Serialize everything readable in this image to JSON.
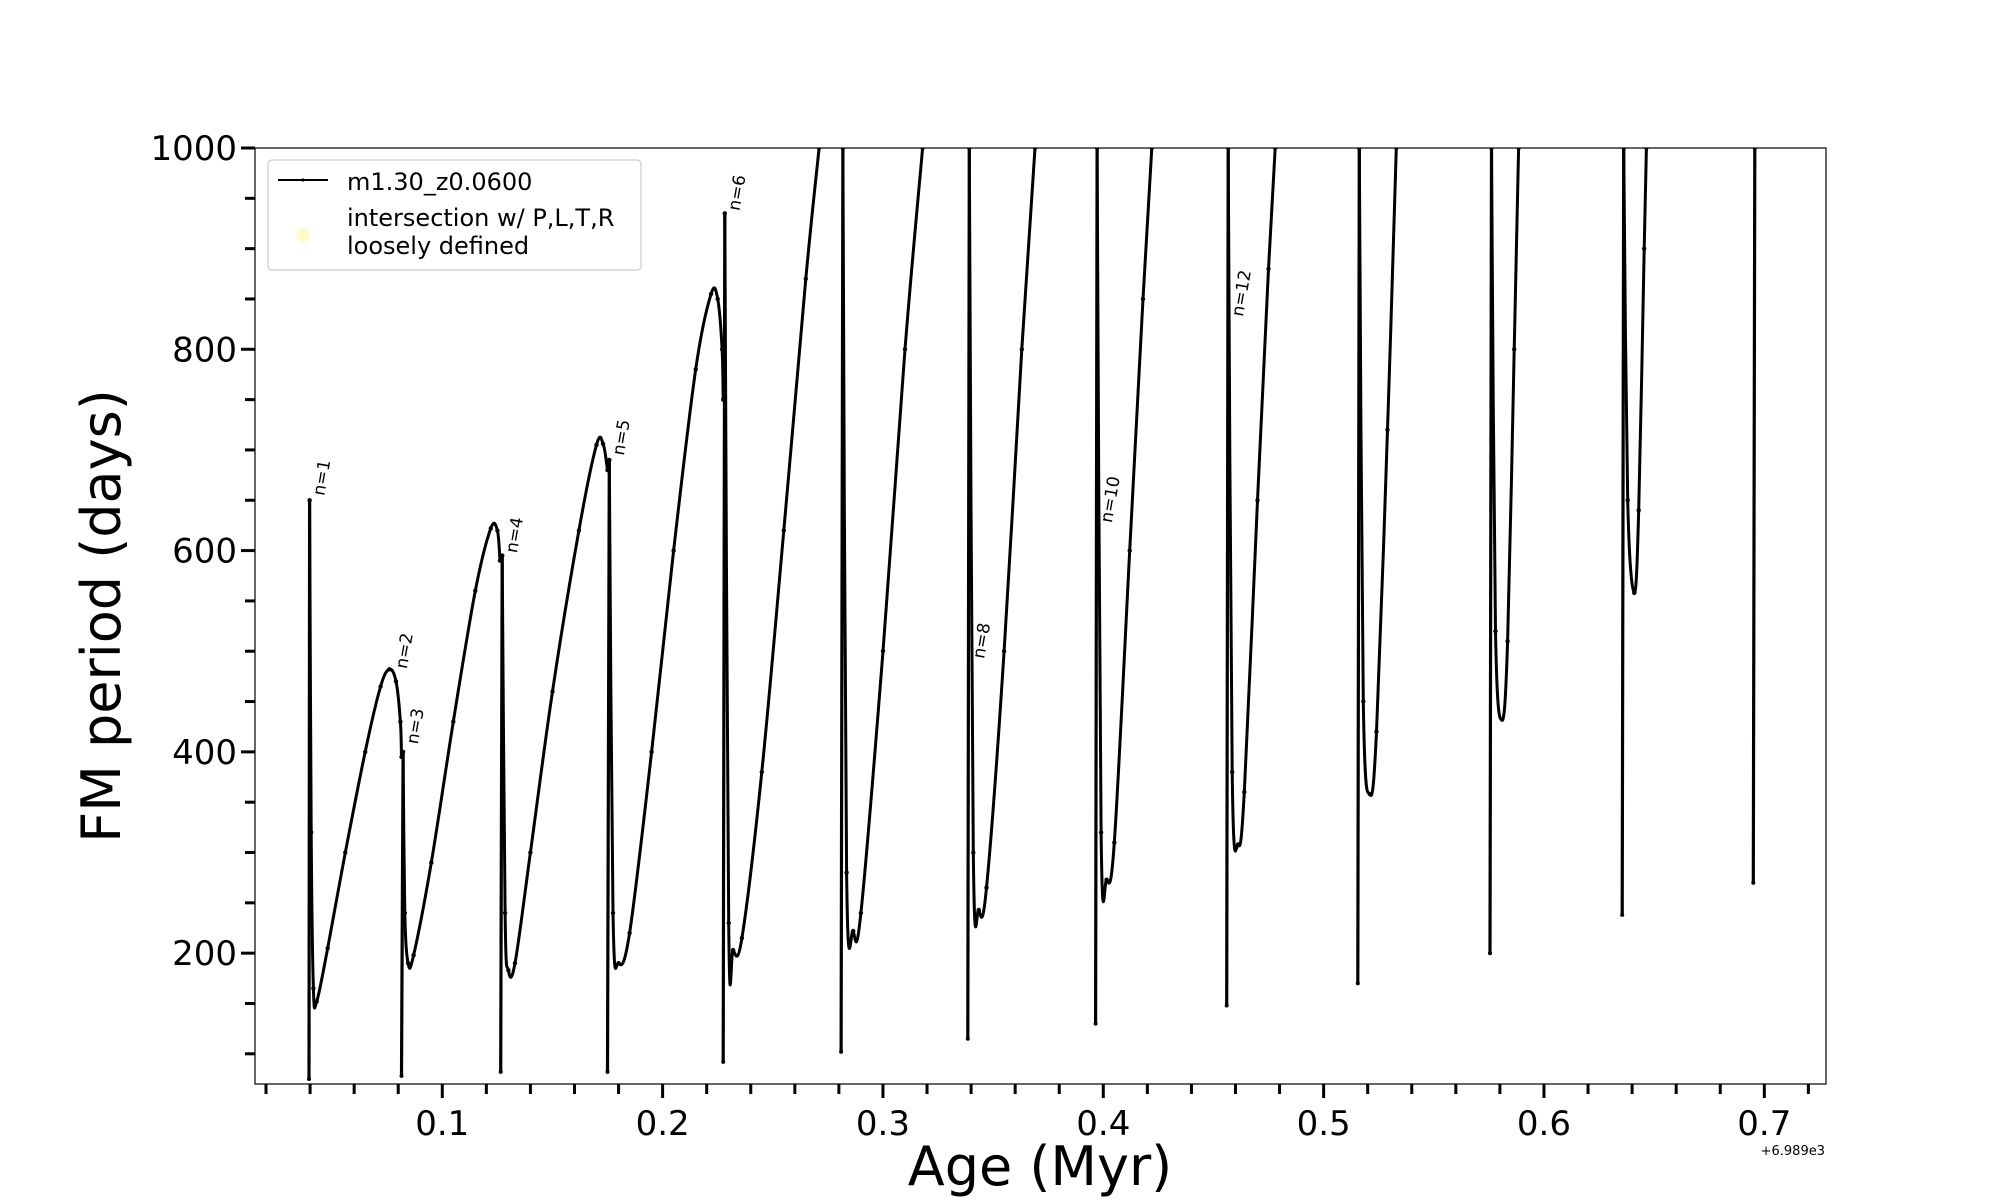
{
  "chart_data": {
    "type": "line",
    "xlabel": "Age (Myr)",
    "ylabel": "FM period (days)",
    "x_offset_label": "+6.989e3",
    "xlim": [
      0.015,
      0.728
    ],
    "ylim": [
      70,
      1000
    ],
    "x_ticks": [
      "0.1",
      "0.2",
      "0.3",
      "0.4",
      "0.5",
      "0.6",
      "0.7"
    ],
    "y_ticks": [
      "200",
      "400",
      "600",
      "800",
      "1000"
    ],
    "legend": {
      "position": "top-left",
      "entries": [
        "m1.30_z0.0600",
        "intersection w/ P,L,T,R\nloosely defined"
      ]
    },
    "marker_color": "#fffacd",
    "line_color": "#000000",
    "series": [
      {
        "name": "m1.30_z0.0600",
        "cycles": [
          {
            "pulse": [
              [
                0.0395,
                75
              ],
              [
                0.0398,
                650
              ]
            ],
            "points": [
              [
                0.0398,
                650
              ],
              [
                0.0405,
                320
              ],
              [
                0.0415,
                165
              ],
              [
                0.043,
                152
              ],
              [
                0.048,
                205
              ],
              [
                0.056,
                300
              ],
              [
                0.065,
                400
              ],
              [
                0.072,
                465
              ],
              [
                0.076,
                482
              ],
              [
                0.079,
                470
              ],
              [
                0.081,
                430
              ],
              [
                0.0815,
                395
              ]
            ]
          },
          {
            "pulse": [
              [
                0.0815,
                78
              ],
              [
                0.0822,
                400
              ]
            ],
            "points": [
              [
                0.0822,
                400
              ],
              [
                0.083,
                240
              ],
              [
                0.0845,
                190
              ],
              [
                0.087,
                198
              ],
              [
                0.095,
                290
              ],
              [
                0.105,
                430
              ],
              [
                0.115,
                560
              ],
              [
                0.122,
                622
              ],
              [
                0.125,
                620
              ],
              [
                0.1262,
                590
              ]
            ]
          },
          {
            "pulse": [
              [
                0.1265,
                82
              ],
              [
                0.1272,
                595
              ]
            ],
            "points": [
              [
                0.1272,
                595
              ],
              [
                0.1285,
                240
              ],
              [
                0.13,
                183
              ],
              [
                0.133,
                190
              ],
              [
                0.14,
                300
              ],
              [
                0.15,
                460
              ],
              [
                0.162,
                620
              ],
              [
                0.17,
                705
              ],
              [
                0.173,
                706
              ],
              [
                0.175,
                680
              ]
            ]
          },
          {
            "pulse": [
              [
                0.175,
                82
              ],
              [
                0.1758,
                690
              ]
            ],
            "points": [
              [
                0.1758,
                690
              ],
              [
                0.1775,
                240
              ],
              [
                0.18,
                190
              ],
              [
                0.185,
                220
              ],
              [
                0.195,
                400
              ],
              [
                0.205,
                600
              ],
              [
                0.215,
                780
              ],
              [
                0.222,
                855
              ],
              [
                0.225,
                850
              ],
              [
                0.227,
                800
              ],
              [
                0.2275,
                750
              ]
            ]
          },
          {
            "pulse": [
              [
                0.2275,
                92
              ],
              [
                0.2282,
                935
              ]
            ],
            "points": [
              [
                0.2282,
                935
              ],
              [
                0.23,
                230
              ],
              [
                0.232,
                203
              ],
              [
                0.236,
                215
              ],
              [
                0.245,
                380
              ],
              [
                0.255,
                620
              ],
              [
                0.265,
                870
              ],
              [
                0.271,
                1000
              ]
            ]
          },
          {
            "pulse": [
              [
                0.281,
                102
              ],
              [
                0.2818,
                1000
              ]
            ],
            "points": [
              [
                0.2818,
                1000
              ],
              [
                0.2835,
                280
              ],
              [
                0.2865,
                222
              ],
              [
                0.29,
                240
              ],
              [
                0.3,
                500
              ],
              [
                0.31,
                800
              ],
              [
                0.318,
                1000
              ]
            ]
          },
          {
            "pulse": [
              [
                0.3385,
                115
              ],
              [
                0.3392,
                1000
              ]
            ],
            "points": [
              [
                0.3392,
                1000
              ],
              [
                0.341,
                300
              ],
              [
                0.3435,
                243
              ],
              [
                0.347,
                265
              ],
              [
                0.355,
                500
              ],
              [
                0.363,
                800
              ],
              [
                0.369,
                1000
              ]
            ]
          },
          {
            "pulse": [
              [
                0.3965,
                130
              ],
              [
                0.3972,
                1000
              ]
            ],
            "points": [
              [
                0.3972,
                1000
              ],
              [
                0.399,
                320
              ],
              [
                0.4015,
                273
              ],
              [
                0.405,
                310
              ],
              [
                0.412,
                600
              ],
              [
                0.418,
                850
              ],
              [
                0.422,
                1000
              ]
            ]
          },
          {
            "pulse": [
              [
                0.456,
                148
              ],
              [
                0.4567,
                1000
              ]
            ],
            "points": [
              [
                0.4567,
                1000
              ],
              [
                0.4585,
                380
              ],
              [
                0.4612,
                308
              ],
              [
                0.464,
                360
              ],
              [
                0.47,
                650
              ],
              [
                0.475,
                880
              ],
              [
                0.478,
                1000
              ]
            ]
          },
          {
            "pulse": [
              [
                0.5155,
                170
              ],
              [
                0.5162,
                1000
              ]
            ],
            "points": [
              [
                0.5162,
                1000
              ],
              [
                0.518,
                450
              ],
              [
                0.521,
                358
              ],
              [
                0.524,
                420
              ],
              [
                0.529,
                720
              ],
              [
                0.533,
                1000
              ]
            ]
          },
          {
            "pulse": [
              [
                0.5755,
                200
              ],
              [
                0.5762,
                1000
              ]
            ],
            "points": [
              [
                0.5762,
                1000
              ],
              [
                0.578,
                520
              ],
              [
                0.581,
                432
              ],
              [
                0.5835,
                510
              ],
              [
                0.5865,
                800
              ],
              [
                0.5885,
                1000
              ]
            ]
          },
          {
            "pulse": [
              [
                0.6355,
                238
              ],
              [
                0.6362,
                1000
              ]
            ],
            "points": [
              [
                0.6362,
                1000
              ],
              [
                0.638,
                650
              ],
              [
                0.641,
                558
              ],
              [
                0.643,
                640
              ],
              [
                0.6455,
                900
              ],
              [
                0.6465,
                1000
              ]
            ]
          },
          {
            "pulse": [
              [
                0.695,
                270
              ],
              [
                0.6957,
                1000
              ]
            ],
            "points": []
          }
        ]
      }
    ],
    "annotations": [
      {
        "text": "n=1",
        "x": 0.04,
        "y": 652
      },
      {
        "text": "n=2",
        "x": 0.0775,
        "y": 480
      },
      {
        "text": "n=3",
        "x": 0.0825,
        "y": 405
      },
      {
        "text": "n=4",
        "x": 0.1275,
        "y": 595
      },
      {
        "text": "n=5",
        "x": 0.176,
        "y": 692
      },
      {
        "text": "n=6",
        "x": 0.2285,
        "y": 935
      },
      {
        "text": "n=8",
        "x": 0.3395,
        "y": 490
      },
      {
        "text": "n=10",
        "x": 0.3975,
        "y": 625
      },
      {
        "text": "n=12",
        "x": 0.457,
        "y": 830
      }
    ]
  }
}
